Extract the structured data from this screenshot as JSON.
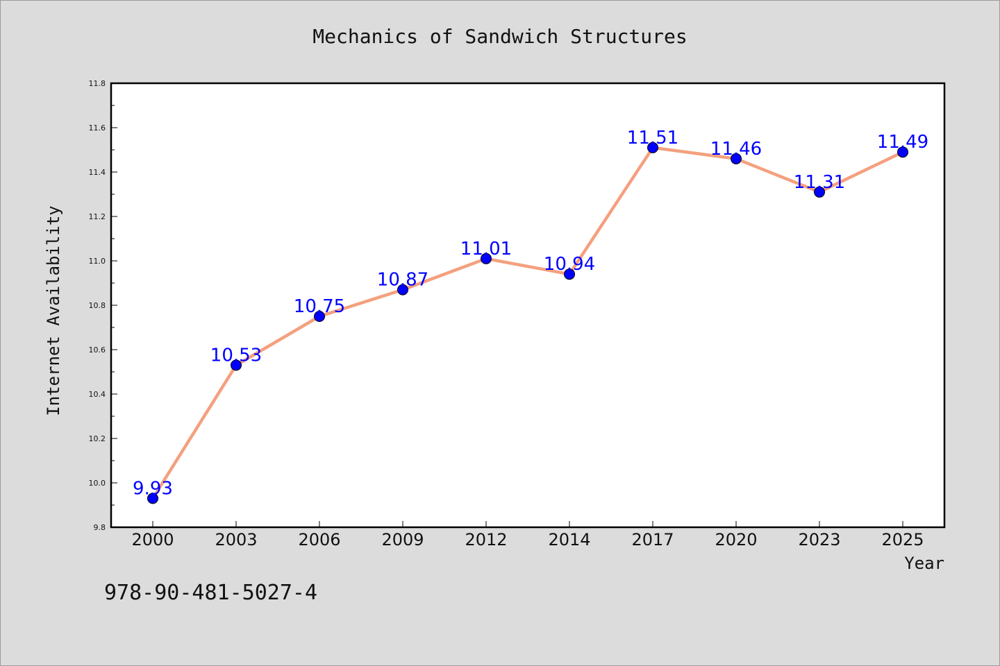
{
  "chart_data": {
    "type": "line",
    "title": "Mechanics of Sandwich Structures",
    "xlabel": "Year",
    "ylabel": "Internet Availability",
    "categories": [
      "2000",
      "2003",
      "2006",
      "2009",
      "2012",
      "2014",
      "2017",
      "2020",
      "2023",
      "2025"
    ],
    "series": [
      {
        "values": [
          9.93,
          10.53,
          10.75,
          10.87,
          11.01,
          10.94,
          11.51,
          11.46,
          11.31,
          11.49
        ]
      }
    ],
    "data_labels": [
      "9.93",
      "10.53",
      "10.75",
      "10.87",
      "11.01",
      "10.94",
      "11.51",
      "11.46",
      "11.31",
      "11.49"
    ],
    "ylim": [
      9.8,
      11.8
    ],
    "yticks": [
      "9.8",
      "10.0",
      "10.2",
      "10.4",
      "10.6",
      "10.8",
      "11.0",
      "11.2",
      "11.4",
      "11.6",
      "11.8"
    ],
    "grid": false,
    "line_color": "#f4a07e",
    "marker_color": "#0000ff",
    "label_color": "#0000ff",
    "background_color": "#dcdcdc"
  },
  "footer": {
    "text": "978-90-481-5027-4"
  }
}
